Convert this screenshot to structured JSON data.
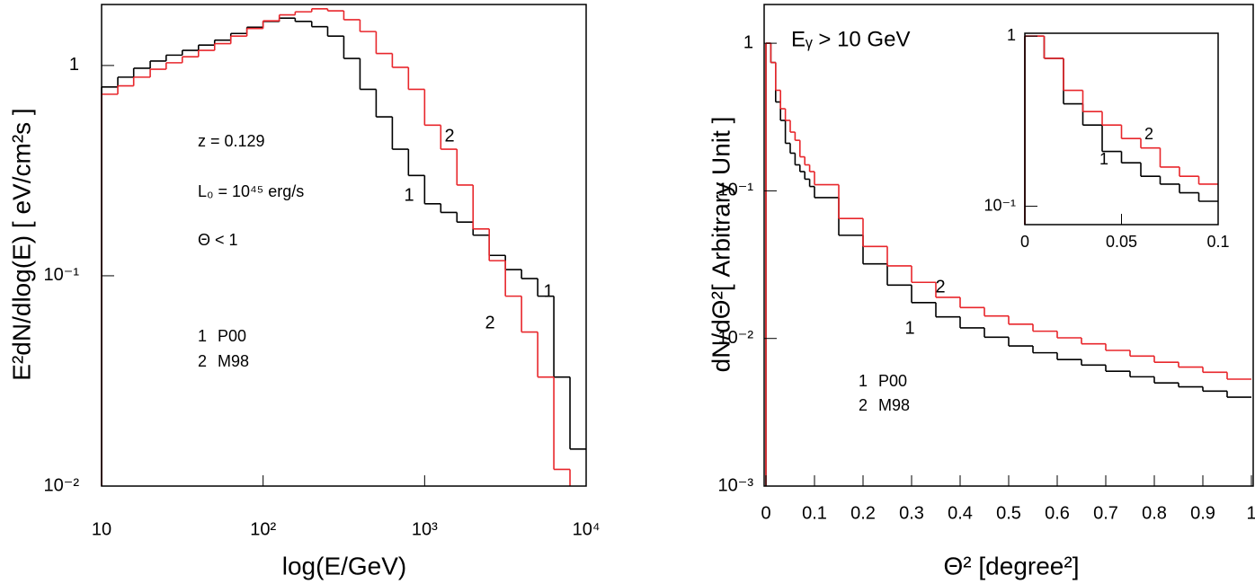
{
  "chart_data": [
    {
      "type": "step",
      "xscale": "log",
      "yscale": "log",
      "x_label": "log(E/GeV)",
      "y_label": "E²dN/dlog(E) [ eV/cm²s ]",
      "xlim": [
        10,
        10000
      ],
      "ylim": [
        0.01,
        1.95
      ],
      "xticks": [
        10,
        {
          "value": 100,
          "label": "10²"
        },
        {
          "value": 1000,
          "label": "10³"
        },
        {
          "value": 10000,
          "label": "10⁴"
        }
      ],
      "yticks": [
        {
          "value": 0.01,
          "label": "10⁻²"
        },
        {
          "value": 0.1,
          "label": "10⁻¹"
        },
        1
      ],
      "annotations": [
        "z = 0.129",
        "L₀ = 10⁴⁵ erg/s",
        "Θ < 1"
      ],
      "x": [
        10,
        12.6,
        15.8,
        20,
        25.1,
        31.6,
        39.8,
        50.1,
        63.1,
        79.4,
        100,
        126,
        158,
        200,
        251,
        316,
        398,
        501,
        631,
        794,
        1000,
        1259,
        1585,
        1995,
        2512,
        3162,
        3981,
        5012,
        6310,
        7943
      ],
      "series": [
        {
          "name": "P00",
          "label": "1",
          "color": "#000000",
          "values": [
            0.79,
            0.88,
            0.97,
            1.05,
            1.12,
            1.18,
            1.25,
            1.32,
            1.42,
            1.52,
            1.62,
            1.68,
            1.62,
            1.53,
            1.38,
            1.08,
            0.77,
            0.57,
            0.4,
            0.3,
            0.22,
            0.2,
            0.18,
            0.156,
            0.125,
            0.107,
            0.097,
            0.08,
            0.033,
            0.015
          ]
        },
        {
          "name": "M98",
          "label": "2",
          "color": "#e8262b",
          "values": [
            0.73,
            0.8,
            0.88,
            0.96,
            1.03,
            1.1,
            1.18,
            1.27,
            1.38,
            1.5,
            1.63,
            1.74,
            1.8,
            1.86,
            1.82,
            1.65,
            1.45,
            1.14,
            0.98,
            0.77,
            0.52,
            0.4,
            0.27,
            0.167,
            0.118,
            0.08,
            0.054,
            0.033,
            0.012,
            null
          ]
        }
      ]
    },
    {
      "type": "step",
      "xscale": "linear",
      "yscale": "log",
      "x_label": "Θ² [degree²]",
      "y_label": "dN/dΘ²[ Arbitrary Unit ]",
      "xlim": [
        0,
        1
      ],
      "ylim": [
        0.001,
        1.83
      ],
      "xticks": [
        0,
        0.1,
        0.2,
        0.3,
        0.4,
        0.5,
        0.6,
        0.7,
        0.8,
        0.9,
        1
      ],
      "yticks": [
        {
          "value": 0.001,
          "label": "10⁻³"
        },
        {
          "value": 0.01,
          "label": "10⁻²"
        },
        {
          "value": 0.1,
          "label": "10⁻¹"
        },
        1
      ],
      "annotations": [
        "Eᵧ > 10 GeV"
      ],
      "x": [
        0,
        0.01,
        0.02,
        0.03,
        0.04,
        0.05,
        0.06,
        0.07,
        0.08,
        0.09,
        0.1,
        0.15,
        0.2,
        0.25,
        0.3,
        0.35,
        0.4,
        0.45,
        0.5,
        0.55,
        0.6,
        0.65,
        0.7,
        0.75,
        0.8,
        0.85,
        0.9,
        0.95
      ],
      "series": [
        {
          "name": "P00",
          "label": "1",
          "color": "#000000",
          "values": [
            1.0,
            0.74,
            0.4,
            0.3,
            0.21,
            0.18,
            0.15,
            0.135,
            0.12,
            0.107,
            0.09,
            0.05,
            0.032,
            0.023,
            0.0175,
            0.014,
            0.0118,
            0.0102,
            0.0089,
            0.008,
            0.0072,
            0.0066,
            0.006,
            0.0055,
            0.005,
            0.0047,
            0.0044,
            0.004
          ]
        },
        {
          "name": "M98",
          "label": "2",
          "color": "#e8262b",
          "values": [
            1.0,
            0.74,
            0.48,
            0.36,
            0.3,
            0.25,
            0.22,
            0.17,
            0.15,
            0.135,
            0.11,
            0.065,
            0.042,
            0.031,
            0.024,
            0.019,
            0.0162,
            0.0142,
            0.0125,
            0.0112,
            0.0101,
            0.0092,
            0.0083,
            0.0076,
            0.0069,
            0.0064,
            0.0059,
            0.0053
          ]
        }
      ]
    },
    {
      "type": "step",
      "xscale": "linear",
      "yscale": "log",
      "xlim": [
        0,
        0.1
      ],
      "ylim": [
        0.078,
        1.04
      ],
      "xticks": [
        0,
        0.05,
        0.1
      ],
      "yticks": [
        {
          "value": 0.1,
          "label": "10⁻¹"
        },
        1
      ],
      "x": [
        0,
        0.01,
        0.02,
        0.03,
        0.04,
        0.05,
        0.06,
        0.07,
        0.08,
        0.09
      ],
      "series": [
        {
          "label": "1",
          "color": "#000000",
          "values": [
            1.0,
            0.74,
            0.4,
            0.3,
            0.21,
            0.18,
            0.15,
            0.135,
            0.12,
            0.107
          ]
        },
        {
          "label": "2",
          "color": "#e8262b",
          "values": [
            1.0,
            0.74,
            0.48,
            0.36,
            0.3,
            0.25,
            0.22,
            0.17,
            0.15,
            0.135
          ]
        }
      ]
    }
  ]
}
